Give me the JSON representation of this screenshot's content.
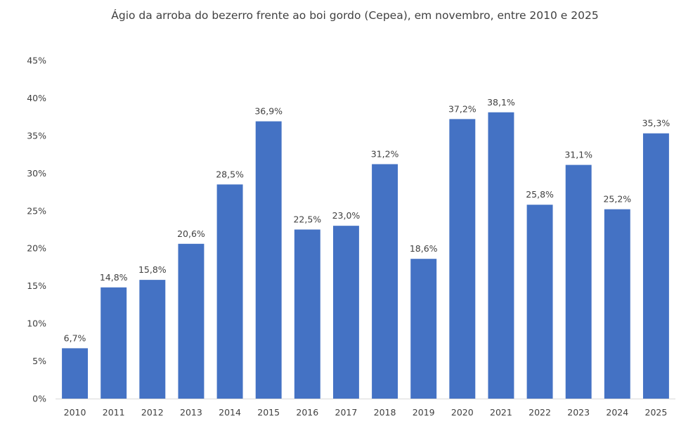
{
  "chart_data": {
    "type": "bar",
    "title": "Ágio da arroba do bezerro frente ao boi gordo (Cepea), em novembro, entre 2010 e 2025",
    "xlabel": "",
    "ylabel": "",
    "categories": [
      "2010",
      "2011",
      "2012",
      "2013",
      "2014",
      "2015",
      "2016",
      "2017",
      "2018",
      "2019",
      "2020",
      "2021",
      "2022",
      "2023",
      "2024",
      "2025"
    ],
    "values": [
      6.7,
      14.8,
      15.8,
      20.6,
      28.5,
      36.9,
      22.5,
      23.0,
      31.2,
      18.6,
      37.2,
      38.1,
      25.8,
      31.1,
      25.2,
      35.3
    ],
    "data_labels": [
      "6,7%",
      "14,8%",
      "15,8%",
      "20,6%",
      "28,5%",
      "36,9%",
      "22,5%",
      "23,0%",
      "31,2%",
      "18,6%",
      "37,2%",
      "38,1%",
      "25,8%",
      "31,1%",
      "25,2%",
      "35,3%"
    ],
    "ylim": [
      0,
      45
    ],
    "yticks": [
      0,
      5,
      10,
      15,
      20,
      25,
      30,
      35,
      40,
      45
    ],
    "ytick_labels": [
      "0%",
      "5%",
      "10%",
      "15%",
      "20%",
      "25%",
      "30%",
      "35%",
      "40%",
      "45%"
    ],
    "grid": false,
    "legend": "none",
    "colors": {
      "bar": "#4472c4",
      "axis": "#d9d9d9",
      "text": "#404040"
    }
  }
}
